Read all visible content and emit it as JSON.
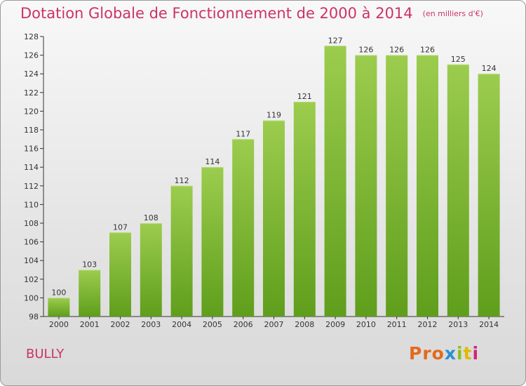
{
  "title": "Dotation Globale de Fonctionnement de 2000 à 2014",
  "unit": "(en milliers d'€)",
  "commune": "BULLY",
  "logo": {
    "p1": "Pro",
    "p2": "x",
    "p3": "i",
    "p4": "t",
    "p5": "i",
    "name": "Proxiti"
  },
  "colors": {
    "title": "#cc3366",
    "bar_top": "#9ccc4e",
    "bar_bottom": "#5f9e1c",
    "axis": "#333333"
  },
  "chart_data": {
    "type": "bar",
    "categories": [
      "2000",
      "2001",
      "2002",
      "2003",
      "2004",
      "2005",
      "2006",
      "2007",
      "2008",
      "2009",
      "2010",
      "2011",
      "2012",
      "2013",
      "2014"
    ],
    "values": [
      100,
      103,
      107,
      108,
      112,
      114,
      117,
      119,
      121,
      127,
      126,
      126,
      126,
      125,
      124
    ],
    "title": "Dotation Globale de Fonctionnement de 2000 à 2014",
    "xlabel": "",
    "ylabel": "",
    "ylim": [
      98,
      128
    ],
    "yticks": [
      98,
      100,
      102,
      104,
      106,
      108,
      110,
      112,
      114,
      116,
      118,
      120,
      122,
      124,
      126,
      128
    ],
    "grid": false,
    "data_labels": true
  }
}
